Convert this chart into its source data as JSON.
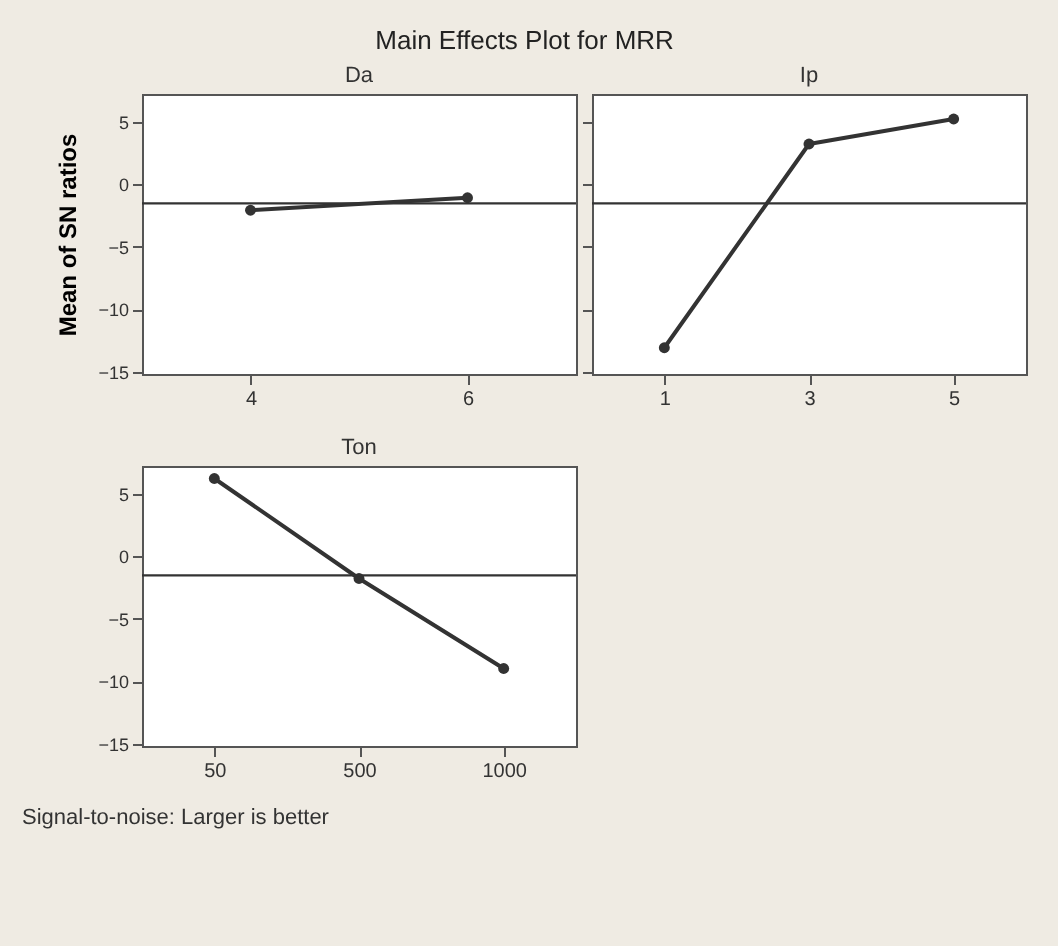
{
  "chart_data": [
    {
      "type": "line",
      "title": "Main Effects Plot for MRR",
      "subtitle": "Da",
      "ylabel": "Mean of SN ratios",
      "categories": [
        "4",
        "6"
      ],
      "values": [
        -2.1,
        -1.1
      ],
      "color": "#333333",
      "marker": "circle",
      "ylim": [
        -15.2,
        7.2
      ],
      "yticks": [
        -15,
        -10,
        -5,
        0,
        5
      ],
      "ref_lines": [
        {
          "axis": "y",
          "value": -1.55,
          "color": "#333333"
        }
      ]
    },
    {
      "type": "line",
      "subtitle": "Ip",
      "categories": [
        "1",
        "3",
        "5"
      ],
      "values": [
        -13.1,
        3.2,
        5.2
      ],
      "color": "#333333",
      "marker": "circle",
      "ylim": [
        -15.2,
        7.2
      ],
      "yticks": [
        -15,
        -10,
        -5,
        0,
        5
      ],
      "tick_labels": "x",
      "ref_lines": [
        {
          "axis": "y",
          "value": -1.55,
          "color": "#333333"
        }
      ]
    },
    {
      "type": "line",
      "subtitle": "Ton",
      "categories": [
        "50",
        "500",
        "1000"
      ],
      "values": [
        6.2,
        -1.8,
        -9.0
      ],
      "color": "#333333",
      "marker": "circle",
      "ylim": [
        -15.2,
        7.2
      ],
      "yticks": [
        -15,
        -10,
        -5,
        0,
        5
      ],
      "ref_lines": [
        {
          "axis": "y",
          "value": -1.55,
          "color": "#333333"
        }
      ],
      "annotations": [
        "Signal-to-noise: Larger is better"
      ]
    }
  ]
}
